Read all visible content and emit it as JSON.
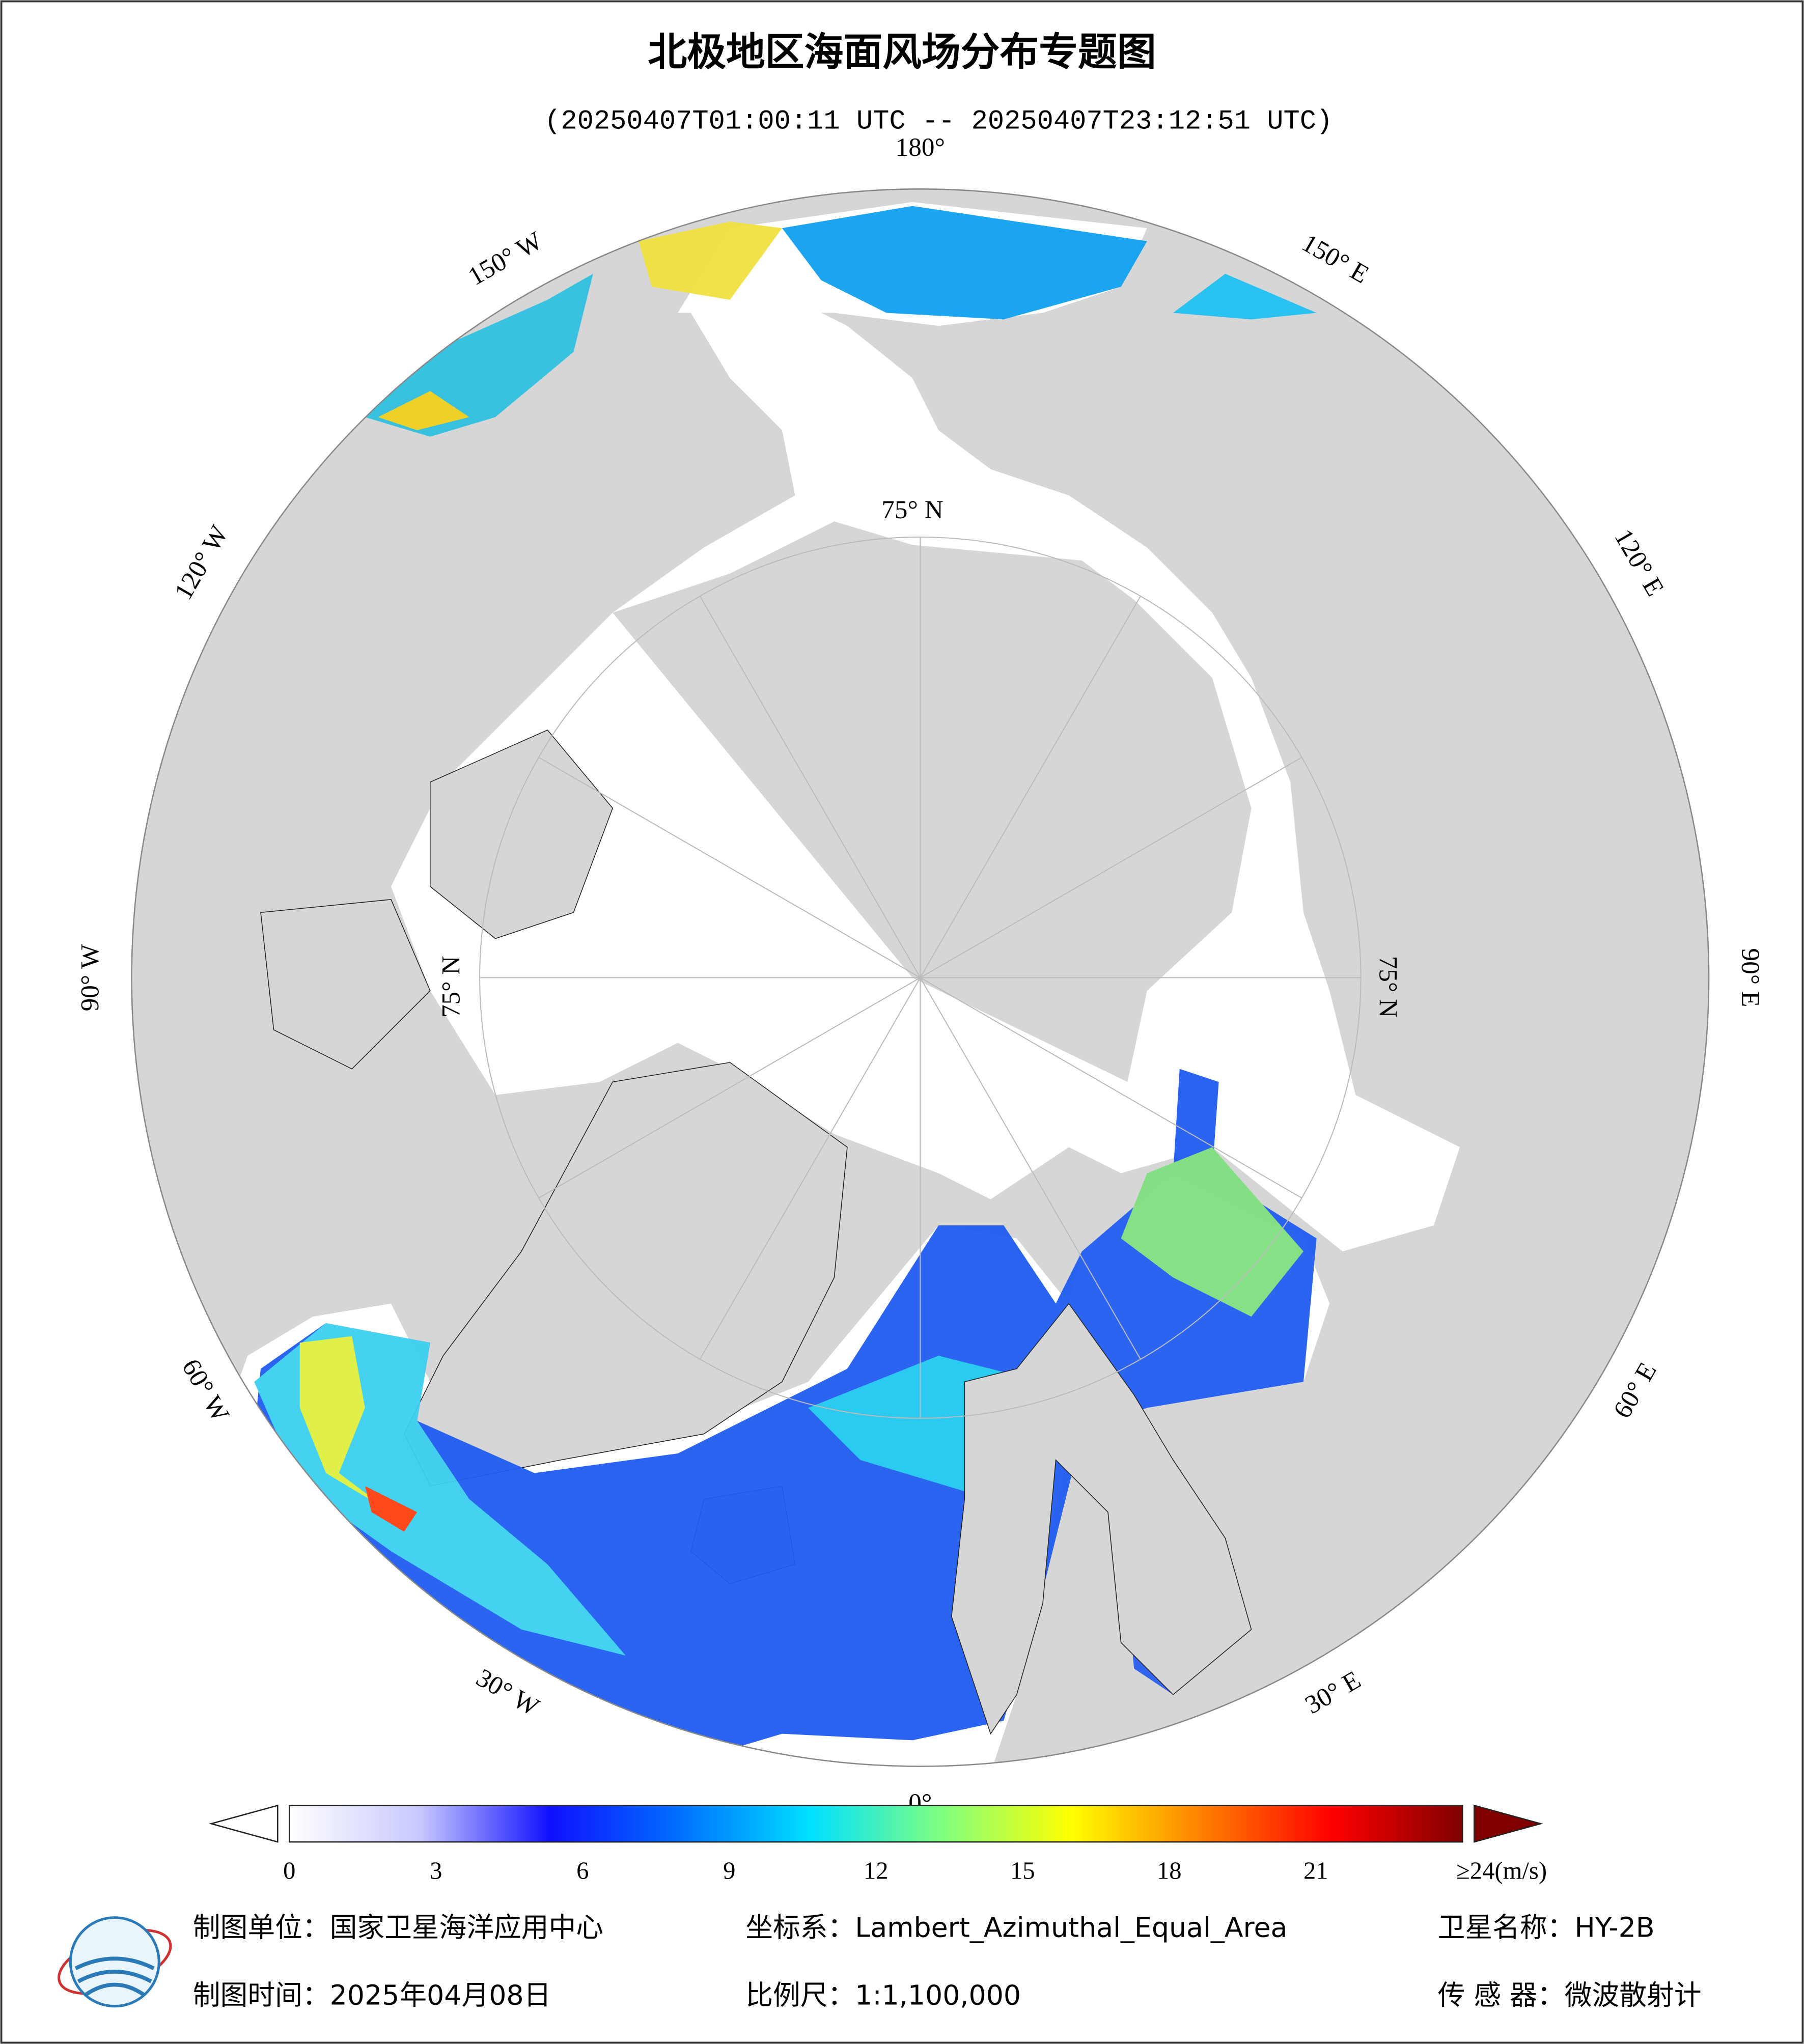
{
  "header": {
    "title": "北极地区海面风场分布专题图",
    "subtitle": "(20250407T01:00:11 UTC -- 20250407T23:12:51 UTC)"
  },
  "map": {
    "lon_labels": [
      "180°",
      "150° E",
      "120° E",
      "90° E",
      "60° E",
      "30° E",
      "0°",
      "30° W",
      "60° W",
      "90° W",
      "120° W",
      "150° W"
    ],
    "lat_labels": [
      "75° N",
      "75° N",
      "75° N"
    ]
  },
  "colorbar": {
    "range": [
      0,
      24
    ],
    "colors": [
      "#ffffff",
      "#c8c8ff",
      "#1010ff",
      "#0070ff",
      "#00e0ff",
      "#80ff80",
      "#ffff00",
      "#ff8000",
      "#ff0000",
      "#800000"
    ],
    "ticks": [
      0,
      3,
      6,
      9,
      12,
      15,
      18,
      21,
      {
        "value": 24,
        "label": "≥24(m/s)"
      }
    ]
  },
  "footer": {
    "unit": "制图单位：国家卫星海洋应用中心",
    "crs": "坐标系：Lambert_Azimuthal_Equal_Area",
    "satellite": "卫星名称：HY-2B",
    "date": "制图时间：2025年04月08日",
    "scale": "比例尺：1:1,100,000",
    "sensor": "传 感 器：微波散射计"
  }
}
